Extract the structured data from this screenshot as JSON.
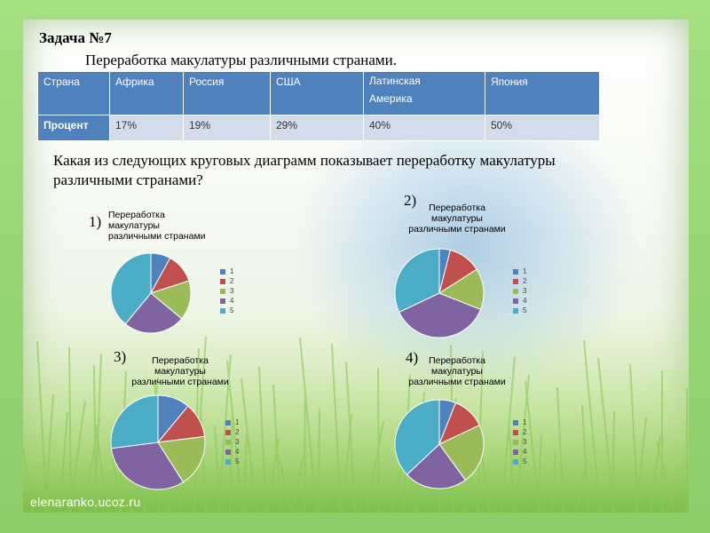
{
  "footer": "elenaranko.ucoz.ru",
  "title": "Задача №7",
  "subtitle": "Переработка макулатуры различными странами.",
  "table": {
    "header": [
      "Страна",
      "Африка",
      "Россия",
      "США",
      "Латинская\nАмерика",
      "Япония"
    ],
    "row_label": "Процент",
    "row": [
      "17%",
      "19%",
      "29%",
      "40%",
      "50%"
    ]
  },
  "question": "Какая из следующих круговых диаграмм показывает переработку макулатуры различными странами?",
  "colors": [
    "#4f81bd",
    "#c0504d",
    "#9bbb59",
    "#8064a2",
    "#4bacc6"
  ],
  "chart_data": [
    {
      "type": "pie",
      "number": "1)",
      "title_lines": [
        "Переработка",
        "макулатуры",
        "различными странами"
      ],
      "labels": [
        "1",
        "2",
        "3",
        "4",
        "5"
      ],
      "values": [
        8,
        12,
        16,
        25,
        39
      ]
    },
    {
      "type": "pie",
      "number": "2)",
      "title_lines": [
        "Переработка",
        "макулатуры",
        "различными странами"
      ],
      "labels": [
        "1",
        "2",
        "3",
        "4",
        "5"
      ],
      "values": [
        4,
        12,
        15,
        37,
        32
      ]
    },
    {
      "type": "pie",
      "number": "3)",
      "title_lines": [
        "Переработка",
        "макулатуры",
        "различными странами"
      ],
      "labels": [
        "1",
        "2",
        "3",
        "4",
        "5"
      ],
      "values": [
        11,
        12,
        18,
        32,
        27
      ]
    },
    {
      "type": "pie",
      "number": "4)",
      "title_lines": [
        "Переработка",
        "макулатуры",
        "различными странами"
      ],
      "labels": [
        "1",
        "2",
        "3",
        "4",
        "5"
      ],
      "values": [
        6,
        12,
        22,
        23,
        37
      ]
    }
  ]
}
